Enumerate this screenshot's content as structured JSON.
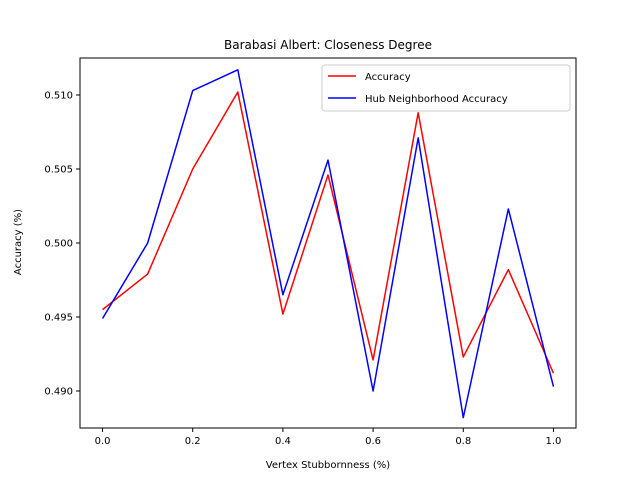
{
  "chart_data": {
    "type": "line",
    "title": "Barabasi Albert: Closeness Degree",
    "xlabel": "Vertex Stubbornness (%)",
    "ylabel": "Accuracy (%)",
    "xlim": [
      -0.05,
      1.05
    ],
    "ylim": [
      0.4875,
      0.5125
    ],
    "xticks": [
      0.0,
      0.2,
      0.4,
      0.6,
      0.8,
      1.0
    ],
    "xtick_labels": [
      "0.0",
      "0.2",
      "0.4",
      "0.6",
      "0.8",
      "1.0"
    ],
    "yticks": [
      0.49,
      0.495,
      0.5,
      0.505,
      0.51
    ],
    "ytick_labels": [
      "0.490",
      "0.495",
      "0.500",
      "0.505",
      "0.510"
    ],
    "grid": false,
    "legend_position": "top-right",
    "x": [
      0.0,
      0.1,
      0.2,
      0.3,
      0.4,
      0.5,
      0.6,
      0.7,
      0.8,
      0.9,
      1.0
    ],
    "series": [
      {
        "name": "Accuracy",
        "color": "#ff0000",
        "values": [
          0.4955,
          0.4979,
          0.505,
          0.5102,
          0.4952,
          0.5046,
          0.4921,
          0.5088,
          0.4923,
          0.4982,
          0.4912
        ]
      },
      {
        "name": "Hub Neighborhood Accuracy",
        "color": "#0000ff",
        "values": [
          0.4949,
          0.5,
          0.5103,
          0.5117,
          0.4965,
          0.5056,
          0.49,
          0.5071,
          0.4882,
          0.5023,
          0.4903
        ]
      }
    ]
  }
}
